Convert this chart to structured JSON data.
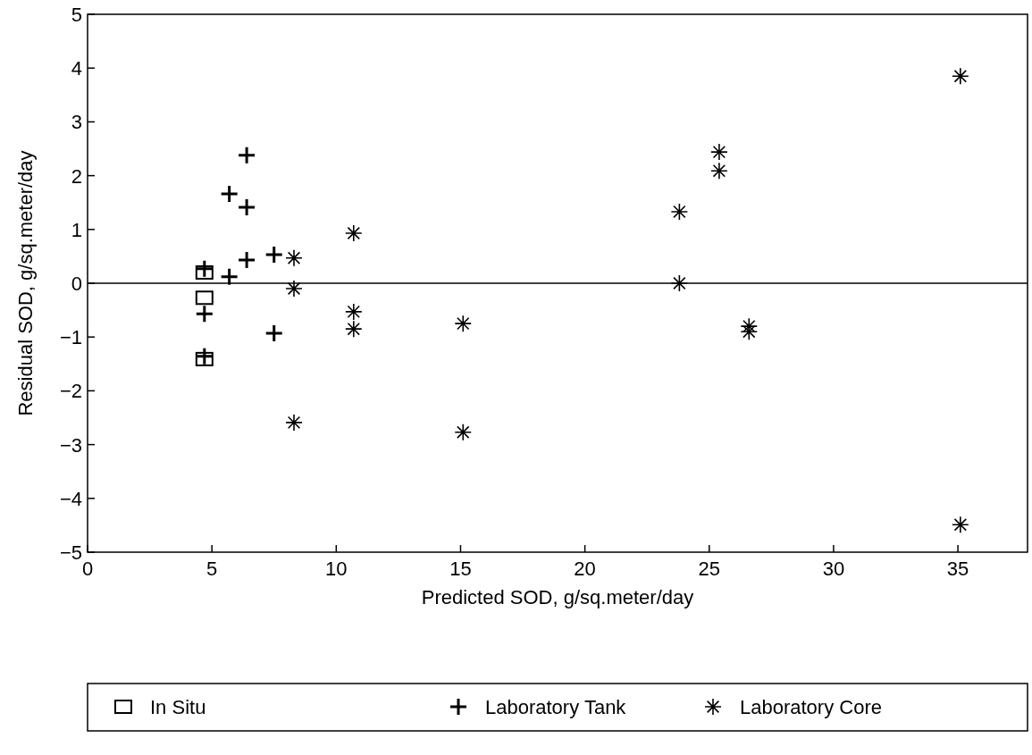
{
  "chart_data": {
    "type": "scatter",
    "xlabel": "Predicted SOD,  g/sq.meter/day",
    "ylabel": "Residual SOD,  g/sq.meter/day",
    "xlim": [
      0,
      37.8
    ],
    "xticks": [
      0,
      5,
      10,
      15,
      20,
      25,
      30,
      35
    ],
    "ylim": [
      -5,
      5
    ],
    "yticks": [
      -5,
      -4,
      -3,
      -2,
      -1,
      0,
      1,
      2,
      3,
      4,
      5
    ],
    "legend": "bottom",
    "grid": false,
    "ref_lines": [
      {
        "axis": "y",
        "value": 0,
        "color": "#000000"
      }
    ],
    "series": [
      {
        "name": "In Situ",
        "color": "#000000",
        "marker": "square",
        "x": [
          4.7,
          4.7,
          4.7
        ],
        "values": [
          0.2,
          -0.27,
          -1.41
        ]
      },
      {
        "name": "Laboratory Tank",
        "color": "#000000",
        "marker": "cross",
        "x": [
          4.7,
          4.7,
          4.7,
          5.7,
          5.7,
          6.4,
          6.4,
          6.4,
          7.5,
          7.5
        ],
        "values": [
          0.27,
          -0.57,
          -1.36,
          0.12,
          1.66,
          2.38,
          1.41,
          0.43,
          0.53,
          -0.93
        ]
      },
      {
        "name": "Laboratory Core",
        "color": "#000000",
        "x": [
          8.3,
          8.3,
          8.3,
          10.7,
          10.7,
          10.7,
          15.1,
          15.1,
          23.8,
          23.8,
          25.4,
          25.4,
          26.6,
          26.6,
          35.1,
          35.1
        ],
        "values": [
          0.47,
          -0.1,
          -2.59,
          0.93,
          -0.53,
          -0.85,
          -0.75,
          -2.77,
          1.33,
          0,
          2.44,
          2.09,
          -0.8,
          -0.9,
          3.85,
          -4.49
        ]
      }
    ]
  }
}
